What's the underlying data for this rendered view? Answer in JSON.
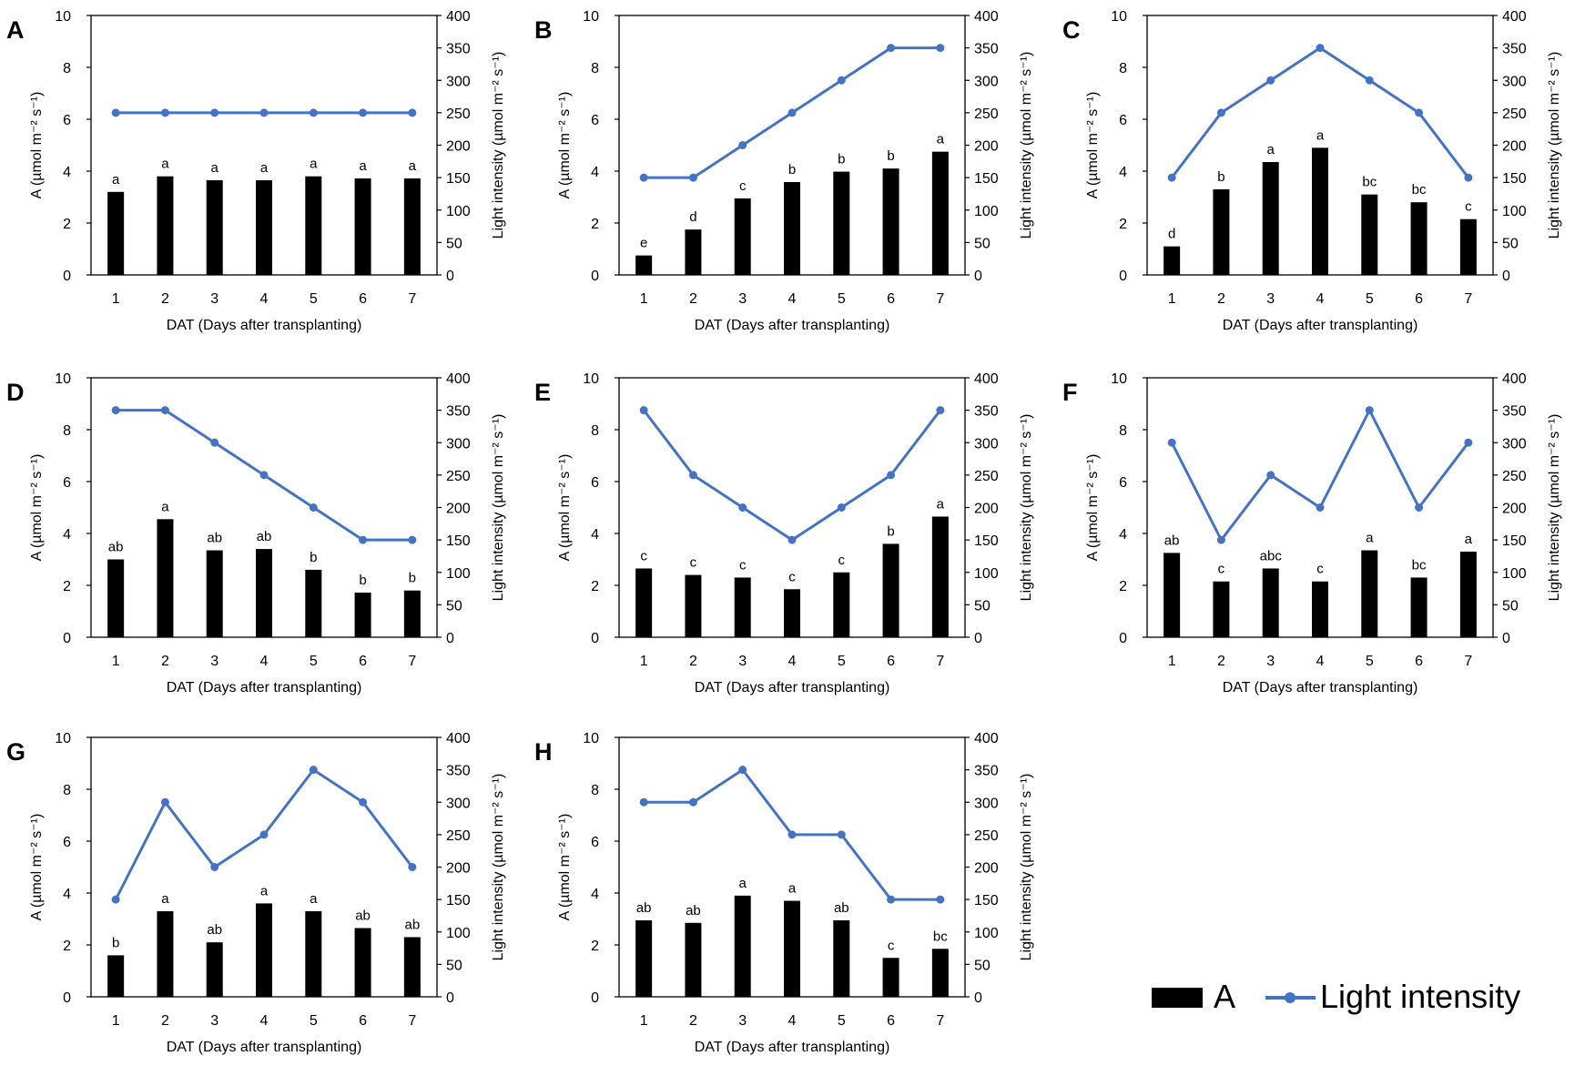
{
  "colors": {
    "bar": "#000000",
    "line": "#4472C4",
    "axis": "#000000"
  },
  "chart_data": [
    {
      "panel": "A",
      "type": "bar",
      "categories": [
        "1",
        "2",
        "3",
        "4",
        "5",
        "6",
        "7"
      ],
      "series": [
        {
          "name": "A",
          "type": "bar",
          "axis": "left",
          "values": [
            3.2,
            3.8,
            3.65,
            3.65,
            3.8,
            3.72,
            3.72
          ],
          "labels": [
            "a",
            "a",
            "a",
            "a",
            "a",
            "a",
            "a"
          ]
        },
        {
          "name": "Light intensity",
          "type": "line",
          "axis": "right",
          "values": [
            250,
            250,
            250,
            250,
            250,
            250,
            250
          ]
        }
      ],
      "xlabel": "DAT (Days after transplanting)",
      "ylabel": "A (µmol m⁻² s⁻¹)",
      "y2label": "Light intensity (µmol m⁻² s⁻¹)",
      "ylim": [
        0,
        10
      ],
      "y2lim": [
        0,
        400
      ]
    },
    {
      "panel": "B",
      "type": "bar",
      "categories": [
        "1",
        "2",
        "3",
        "4",
        "5",
        "6",
        "7"
      ],
      "series": [
        {
          "name": "A",
          "type": "bar",
          "axis": "left",
          "values": [
            0.75,
            1.75,
            2.95,
            3.58,
            3.98,
            4.1,
            4.75
          ],
          "labels": [
            "e",
            "d",
            "c",
            "b",
            "b",
            "b",
            "a"
          ]
        },
        {
          "name": "Light intensity",
          "type": "line",
          "axis": "right",
          "values": [
            150,
            150,
            200,
            250,
            300,
            350,
            350
          ]
        }
      ],
      "xlabel": "DAT (Days after transplanting)",
      "ylabel": "A (µmol m⁻² s⁻¹)",
      "y2label": "Light intensity (µmol m⁻² s⁻¹)",
      "ylim": [
        0,
        10
      ],
      "y2lim": [
        0,
        400
      ]
    },
    {
      "panel": "C",
      "type": "bar",
      "categories": [
        "1",
        "2",
        "3",
        "4",
        "5",
        "6",
        "7"
      ],
      "series": [
        {
          "name": "A",
          "type": "bar",
          "axis": "left",
          "values": [
            1.1,
            3.3,
            4.35,
            4.9,
            3.1,
            2.8,
            2.15
          ],
          "labels": [
            "d",
            "b",
            "a",
            "a",
            "bc",
            "bc",
            "c"
          ]
        },
        {
          "name": "Light intensity",
          "type": "line",
          "axis": "right",
          "values": [
            150,
            250,
            300,
            350,
            300,
            250,
            150
          ]
        }
      ],
      "xlabel": "DAT (Days after transplanting)",
      "ylabel": "A (µmol m⁻² s⁻¹)",
      "y2label": "Light intensity (µmol m⁻² s⁻¹)",
      "ylim": [
        0,
        10
      ],
      "y2lim": [
        0,
        400
      ]
    },
    {
      "panel": "D",
      "type": "bar",
      "categories": [
        "1",
        "2",
        "3",
        "4",
        "5",
        "6",
        "7"
      ],
      "series": [
        {
          "name": "A",
          "type": "bar",
          "axis": "left",
          "values": [
            3.0,
            4.55,
            3.35,
            3.4,
            2.6,
            1.72,
            1.8
          ],
          "labels": [
            "ab",
            "a",
            "ab",
            "ab",
            "b",
            "b",
            "b"
          ]
        },
        {
          "name": "Light intensity",
          "type": "line",
          "axis": "right",
          "values": [
            350,
            350,
            300,
            250,
            200,
            150,
            150
          ]
        }
      ],
      "xlabel": "DAT (Days after transplanting)",
      "ylabel": "A (µmol m⁻² s⁻¹)",
      "y2label": "Light intensity (µmol m⁻² s⁻¹)",
      "ylim": [
        0,
        10
      ],
      "y2lim": [
        0,
        400
      ]
    },
    {
      "panel": "E",
      "type": "bar",
      "categories": [
        "1",
        "2",
        "3",
        "4",
        "5",
        "6",
        "7"
      ],
      "series": [
        {
          "name": "A",
          "type": "bar",
          "axis": "left",
          "values": [
            2.65,
            2.4,
            2.3,
            1.85,
            2.5,
            3.6,
            4.65
          ],
          "labels": [
            "c",
            "c",
            "c",
            "c",
            "c",
            "b",
            "a"
          ]
        },
        {
          "name": "Light intensity",
          "type": "line",
          "axis": "right",
          "values": [
            350,
            250,
            200,
            150,
            200,
            250,
            350
          ]
        }
      ],
      "xlabel": "DAT (Days after transplanting)",
      "ylabel": "A (µmol m⁻² s⁻¹)",
      "y2label": "Light intensity (µmol m⁻² s⁻¹)",
      "ylim": [
        0,
        10
      ],
      "y2lim": [
        0,
        400
      ]
    },
    {
      "panel": "F",
      "type": "bar",
      "categories": [
        "1",
        "2",
        "3",
        "4",
        "5",
        "6",
        "7"
      ],
      "series": [
        {
          "name": "A",
          "type": "bar",
          "axis": "left",
          "values": [
            3.25,
            2.15,
            2.65,
            2.15,
            3.35,
            2.3,
            3.3
          ],
          "labels": [
            "ab",
            "c",
            "abc",
            "c",
            "a",
            "bc",
            "a"
          ]
        },
        {
          "name": "Light intensity",
          "type": "line",
          "axis": "right",
          "values": [
            300,
            150,
            250,
            200,
            350,
            200,
            300
          ]
        }
      ],
      "xlabel": "DAT (Days after transplanting)",
      "ylabel": "A (µmol m⁻² s⁻¹)",
      "y2label": "Light intensity (µmol m⁻² s⁻¹)",
      "ylim": [
        0,
        10
      ],
      "y2lim": [
        0,
        400
      ]
    },
    {
      "panel": "G",
      "type": "bar",
      "categories": [
        "1",
        "2",
        "3",
        "4",
        "5",
        "6",
        "7"
      ],
      "series": [
        {
          "name": "A",
          "type": "bar",
          "axis": "left",
          "values": [
            1.6,
            3.3,
            2.1,
            3.6,
            3.3,
            2.65,
            2.3
          ],
          "labels": [
            "b",
            "a",
            "ab",
            "a",
            "a",
            "ab",
            "ab"
          ]
        },
        {
          "name": "Light intensity",
          "type": "line",
          "axis": "right",
          "values": [
            150,
            300,
            200,
            250,
            350,
            300,
            200
          ]
        }
      ],
      "xlabel": "DAT (Days after transplanting)",
      "ylabel": "A (µmol m⁻² s⁻¹)",
      "y2label": "Light intensity (µmol m⁻² s⁻¹)",
      "ylim": [
        0,
        10
      ],
      "y2lim": [
        0,
        400
      ]
    },
    {
      "panel": "H",
      "type": "bar",
      "categories": [
        "1",
        "2",
        "3",
        "4",
        "5",
        "6",
        "7"
      ],
      "series": [
        {
          "name": "A",
          "type": "bar",
          "axis": "left",
          "values": [
            2.95,
            2.85,
            3.9,
            3.7,
            2.95,
            1.5,
            1.85
          ],
          "labels": [
            "ab",
            "ab",
            "a",
            "a",
            "ab",
            "c",
            "bc"
          ]
        },
        {
          "name": "Light intensity",
          "type": "line",
          "axis": "right",
          "values": [
            300,
            300,
            350,
            250,
            250,
            150,
            150
          ]
        }
      ],
      "xlabel": "DAT (Days after transplanting)",
      "ylabel": "A (µmol m⁻² s⁻¹)",
      "y2label": "Light intensity (µmol m⁻² s⁻¹)",
      "ylim": [
        0,
        10
      ],
      "y2lim": [
        0,
        400
      ]
    }
  ],
  "legend": {
    "bar_label": "A",
    "line_label": "Light intensity"
  }
}
